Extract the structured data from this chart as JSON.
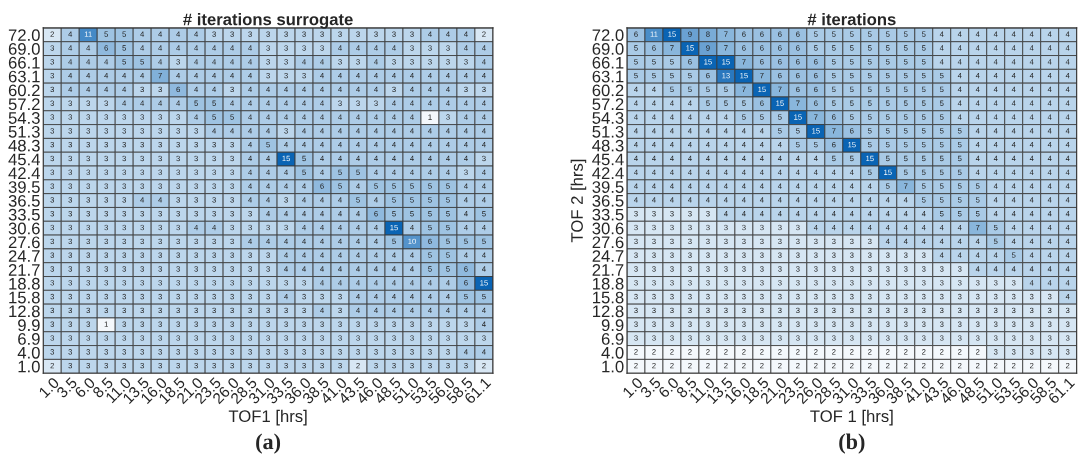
{
  "chart_data": [
    {
      "type": "heatmap",
      "title": "# iterations surrogate",
      "xlabel": "TOF1 [hrs]",
      "annotations": [
        "(a)"
      ],
      "data_labels": true,
      "categories": [
        "1.0",
        "3.5",
        "6.0",
        "8.5",
        "11.0",
        "13.5",
        "16.0",
        "18.5",
        "21.0",
        "23.5",
        "26.0",
        "28.5",
        "31.0",
        "33.5",
        "36.0",
        "38.5",
        "41.0",
        "43.5",
        "46.0",
        "48.5",
        "51.0",
        "53.5",
        "56.0",
        "58.5",
        "61.1"
      ],
      "y_categories": [
        "72.0",
        "69.0",
        "66.1",
        "63.1",
        "60.2",
        "57.2",
        "54.3",
        "51.3",
        "48.3",
        "45.4",
        "42.4",
        "39.5",
        "36.5",
        "33.5",
        "30.6",
        "27.6",
        "24.7",
        "21.7",
        "18.8",
        "15.8",
        "12.8",
        "9.9",
        "6.9",
        "4.0",
        "1.0"
      ],
      "cells": [
        [
          2,
          4,
          11,
          5,
          5,
          4,
          4,
          4,
          4,
          3,
          3,
          3,
          3,
          3,
          3,
          3,
          3,
          3,
          3,
          3,
          3,
          4,
          4,
          4,
          2
        ],
        [
          3,
          4,
          4,
          6,
          5,
          4,
          4,
          4,
          4,
          4,
          4,
          4,
          3,
          3,
          3,
          3,
          4,
          4,
          4,
          4,
          3,
          3,
          3,
          4,
          4
        ],
        [
          3,
          4,
          4,
          4,
          5,
          5,
          4,
          3,
          4,
          4,
          4,
          4,
          3,
          3,
          4,
          4,
          3,
          3,
          4,
          3,
          3,
          3,
          3,
          3,
          4
        ],
        [
          3,
          4,
          4,
          4,
          4,
          4,
          7,
          4,
          4,
          4,
          4,
          4,
          3,
          3,
          3,
          4,
          4,
          4,
          4,
          4,
          4,
          4,
          4,
          4,
          4
        ],
        [
          3,
          4,
          4,
          4,
          4,
          3,
          3,
          6,
          4,
          4,
          3,
          4,
          4,
          4,
          4,
          4,
          4,
          4,
          4,
          3,
          4,
          4,
          4,
          3,
          3
        ],
        [
          3,
          3,
          3,
          3,
          4,
          4,
          4,
          4,
          5,
          5,
          4,
          4,
          4,
          4,
          4,
          4,
          3,
          3,
          3,
          4,
          4,
          4,
          4,
          4,
          4
        ],
        [
          3,
          3,
          3,
          3,
          3,
          3,
          3,
          3,
          4,
          5,
          5,
          4,
          4,
          4,
          4,
          4,
          4,
          4,
          4,
          4,
          4,
          1,
          3,
          4,
          4
        ],
        [
          3,
          3,
          3,
          3,
          3,
          3,
          3,
          3,
          3,
          4,
          4,
          4,
          4,
          3,
          4,
          4,
          4,
          4,
          4,
          4,
          4,
          4,
          4,
          4,
          4
        ],
        [
          3,
          3,
          3,
          3,
          3,
          3,
          3,
          3,
          3,
          3,
          3,
          4,
          5,
          4,
          4,
          4,
          4,
          4,
          4,
          4,
          4,
          4,
          4,
          4,
          4
        ],
        [
          3,
          3,
          3,
          3,
          3,
          3,
          3,
          3,
          3,
          3,
          3,
          4,
          4,
          15,
          5,
          4,
          4,
          4,
          4,
          4,
          4,
          4,
          4,
          4,
          3
        ],
        [
          3,
          3,
          3,
          3,
          3,
          3,
          3,
          3,
          3,
          3,
          3,
          4,
          4,
          4,
          5,
          4,
          5,
          5,
          4,
          4,
          4,
          4,
          4,
          3,
          4
        ],
        [
          3,
          3,
          3,
          3,
          3,
          3,
          3,
          3,
          3,
          3,
          3,
          4,
          4,
          4,
          4,
          6,
          5,
          4,
          5,
          5,
          5,
          5,
          5,
          4,
          4
        ],
        [
          3,
          3,
          3,
          3,
          3,
          4,
          4,
          3,
          3,
          3,
          3,
          4,
          4,
          3,
          4,
          4,
          4,
          5,
          4,
          5,
          5,
          5,
          5,
          4,
          4
        ],
        [
          3,
          3,
          3,
          3,
          3,
          3,
          3,
          3,
          3,
          3,
          3,
          3,
          4,
          4,
          4,
          4,
          4,
          4,
          6,
          5,
          5,
          5,
          5,
          4,
          5
        ],
        [
          3,
          3,
          3,
          3,
          3,
          3,
          3,
          3,
          4,
          4,
          3,
          3,
          3,
          3,
          4,
          4,
          4,
          4,
          4,
          15,
          4,
          5,
          5,
          4,
          4
        ],
        [
          3,
          3,
          3,
          3,
          3,
          3,
          3,
          3,
          3,
          3,
          3,
          4,
          4,
          4,
          4,
          4,
          4,
          4,
          4,
          5,
          10,
          6,
          5,
          5,
          5
        ],
        [
          3,
          3,
          3,
          3,
          3,
          3,
          3,
          3,
          3,
          3,
          3,
          3,
          3,
          4,
          4,
          4,
          4,
          4,
          4,
          4,
          4,
          5,
          5,
          4,
          4
        ],
        [
          3,
          3,
          3,
          3,
          3,
          3,
          3,
          3,
          3,
          3,
          3,
          3,
          3,
          4,
          4,
          4,
          4,
          4,
          4,
          4,
          4,
          5,
          5,
          6,
          4
        ],
        [
          3,
          3,
          3,
          3,
          3,
          3,
          3,
          3,
          3,
          3,
          3,
          3,
          3,
          3,
          3,
          4,
          4,
          4,
          4,
          4,
          4,
          4,
          4,
          6,
          15
        ],
        [
          3,
          3,
          3,
          3,
          3,
          3,
          3,
          3,
          3,
          3,
          3,
          3,
          3,
          4,
          3,
          3,
          3,
          4,
          4,
          4,
          4,
          4,
          4,
          5,
          5
        ],
        [
          3,
          3,
          3,
          3,
          3,
          3,
          3,
          3,
          3,
          3,
          3,
          3,
          3,
          3,
          3,
          4,
          3,
          4,
          4,
          4,
          4,
          4,
          4,
          4,
          4
        ],
        [
          3,
          3,
          3,
          1,
          3,
          3,
          3,
          3,
          3,
          3,
          3,
          3,
          3,
          3,
          3,
          3,
          3,
          3,
          3,
          3,
          3,
          3,
          3,
          3,
          4
        ],
        [
          3,
          3,
          3,
          3,
          3,
          3,
          3,
          3,
          3,
          3,
          3,
          3,
          3,
          3,
          3,
          3,
          3,
          3,
          3,
          3,
          3,
          3,
          3,
          3,
          3
        ],
        [
          3,
          3,
          3,
          3,
          3,
          3,
          3,
          3,
          3,
          3,
          3,
          3,
          3,
          3,
          3,
          3,
          3,
          3,
          3,
          3,
          3,
          3,
          3,
          4,
          4
        ],
        [
          2,
          3,
          3,
          3,
          3,
          3,
          3,
          3,
          3,
          3,
          3,
          3,
          3,
          3,
          3,
          3,
          3,
          2,
          3,
          3,
          3,
          3,
          3,
          3,
          2
        ]
      ]
    },
    {
      "type": "heatmap",
      "title": "# iterations",
      "xlabel": "TOF 1 [hrs]",
      "ylabel": "TOF 2 [hrs]",
      "annotations": [
        "(b)"
      ],
      "data_labels": true,
      "categories": [
        "1.0",
        "3.5",
        "6.0",
        "8.5",
        "11.0",
        "13.5",
        "16.0",
        "18.5",
        "21.0",
        "23.5",
        "26.0",
        "28.5",
        "31.0",
        "33.5",
        "36.0",
        "38.5",
        "41.0",
        "43.5",
        "46.0",
        "48.5",
        "51.0",
        "53.5",
        "56.0",
        "58.5",
        "61.1"
      ],
      "y_categories": [
        "72.0",
        "69.0",
        "66.1",
        "63.1",
        "60.2",
        "57.2",
        "54.3",
        "51.3",
        "48.3",
        "45.4",
        "42.4",
        "39.5",
        "36.5",
        "33.5",
        "30.6",
        "27.6",
        "24.7",
        "21.7",
        "18.8",
        "15.8",
        "12.8",
        "9.9",
        "6.9",
        "4.0",
        "1.0"
      ],
      "cells": [
        [
          6,
          11,
          15,
          9,
          8,
          7,
          6,
          6,
          6,
          6,
          5,
          5,
          5,
          5,
          5,
          5,
          5,
          4,
          4,
          4,
          4,
          4,
          4,
          4,
          4
        ],
        [
          5,
          6,
          7,
          15,
          9,
          7,
          6,
          6,
          6,
          6,
          5,
          5,
          5,
          5,
          5,
          5,
          5,
          4,
          4,
          4,
          4,
          4,
          4,
          4,
          4
        ],
        [
          5,
          5,
          5,
          6,
          15,
          15,
          7,
          6,
          6,
          6,
          6,
          5,
          5,
          5,
          5,
          5,
          5,
          4,
          4,
          4,
          4,
          4,
          4,
          4,
          4
        ],
        [
          5,
          5,
          5,
          5,
          6,
          13,
          15,
          7,
          6,
          6,
          6,
          5,
          5,
          5,
          5,
          5,
          5,
          5,
          4,
          4,
          4,
          4,
          4,
          4,
          4
        ],
        [
          4,
          4,
          5,
          5,
          5,
          5,
          7,
          15,
          7,
          6,
          6,
          5,
          5,
          5,
          5,
          5,
          5,
          5,
          4,
          4,
          4,
          4,
          4,
          4,
          4
        ],
        [
          4,
          4,
          4,
          4,
          5,
          5,
          5,
          6,
          15,
          7,
          6,
          5,
          5,
          5,
          5,
          5,
          5,
          5,
          4,
          4,
          4,
          4,
          4,
          4,
          4
        ],
        [
          4,
          4,
          4,
          4,
          4,
          4,
          5,
          5,
          5,
          15,
          7,
          6,
          5,
          5,
          5,
          5,
          5,
          5,
          4,
          4,
          4,
          4,
          4,
          4,
          4
        ],
        [
          4,
          4,
          4,
          4,
          4,
          4,
          4,
          4,
          5,
          5,
          15,
          7,
          6,
          5,
          5,
          5,
          5,
          5,
          5,
          4,
          4,
          4,
          4,
          4,
          4
        ],
        [
          4,
          4,
          4,
          4,
          4,
          4,
          4,
          4,
          4,
          5,
          5,
          6,
          15,
          5,
          5,
          5,
          5,
          5,
          5,
          4,
          4,
          4,
          4,
          4,
          4
        ],
        [
          4,
          4,
          4,
          4,
          4,
          4,
          4,
          4,
          4,
          4,
          4,
          5,
          5,
          15,
          5,
          5,
          5,
          5,
          5,
          4,
          4,
          4,
          4,
          4,
          4
        ],
        [
          4,
          4,
          4,
          4,
          4,
          4,
          4,
          4,
          4,
          4,
          4,
          4,
          4,
          5,
          15,
          5,
          5,
          5,
          5,
          4,
          4,
          4,
          4,
          4,
          4
        ],
        [
          4,
          4,
          4,
          4,
          4,
          4,
          4,
          4,
          4,
          4,
          4,
          4,
          4,
          4,
          5,
          7,
          5,
          5,
          5,
          5,
          4,
          4,
          4,
          4,
          4
        ],
        [
          4,
          4,
          4,
          4,
          4,
          4,
          4,
          4,
          4,
          4,
          4,
          4,
          4,
          4,
          4,
          4,
          5,
          5,
          5,
          5,
          4,
          4,
          4,
          4,
          4
        ],
        [
          3,
          3,
          3,
          3,
          3,
          4,
          4,
          4,
          4,
          4,
          4,
          4,
          4,
          4,
          4,
          4,
          4,
          5,
          5,
          5,
          4,
          4,
          4,
          4,
          4
        ],
        [
          3,
          3,
          3,
          3,
          3,
          3,
          3,
          3,
          3,
          3,
          4,
          4,
          4,
          4,
          4,
          4,
          4,
          4,
          4,
          7,
          5,
          4,
          4,
          4,
          4
        ],
        [
          3,
          3,
          3,
          3,
          3,
          3,
          3,
          3,
          3,
          3,
          3,
          3,
          3,
          3,
          4,
          4,
          4,
          4,
          4,
          4,
          5,
          4,
          4,
          4,
          4
        ],
        [
          3,
          3,
          3,
          3,
          3,
          3,
          3,
          3,
          3,
          3,
          3,
          3,
          3,
          3,
          3,
          3,
          3,
          4,
          4,
          4,
          4,
          5,
          4,
          4,
          4
        ],
        [
          3,
          3,
          3,
          3,
          3,
          3,
          3,
          3,
          3,
          3,
          3,
          3,
          3,
          3,
          3,
          3,
          3,
          3,
          3,
          4,
          4,
          4,
          4,
          4,
          4
        ],
        [
          3,
          3,
          3,
          3,
          3,
          3,
          3,
          3,
          3,
          3,
          3,
          3,
          3,
          3,
          3,
          3,
          3,
          3,
          3,
          3,
          3,
          3,
          4,
          4,
          4
        ],
        [
          3,
          3,
          3,
          3,
          3,
          3,
          3,
          3,
          3,
          3,
          3,
          3,
          3,
          3,
          3,
          3,
          3,
          3,
          3,
          3,
          3,
          3,
          3,
          3,
          4
        ],
        [
          3,
          3,
          3,
          3,
          3,
          3,
          3,
          3,
          3,
          3,
          3,
          3,
          3,
          3,
          3,
          3,
          3,
          3,
          3,
          3,
          3,
          3,
          3,
          3,
          3
        ],
        [
          3,
          3,
          3,
          3,
          3,
          3,
          3,
          3,
          3,
          3,
          3,
          3,
          3,
          3,
          3,
          3,
          3,
          3,
          3,
          3,
          3,
          3,
          3,
          3,
          3
        ],
        [
          3,
          3,
          3,
          3,
          3,
          3,
          3,
          3,
          3,
          3,
          3,
          3,
          3,
          3,
          3,
          3,
          3,
          3,
          3,
          3,
          3,
          3,
          3,
          3,
          3
        ],
        [
          2,
          2,
          2,
          2,
          2,
          2,
          2,
          2,
          2,
          2,
          2,
          2,
          2,
          2,
          2,
          2,
          2,
          2,
          2,
          2,
          3,
          3,
          3,
          3,
          3
        ],
        [
          2,
          2,
          2,
          2,
          2,
          2,
          2,
          2,
          2,
          2,
          2,
          2,
          2,
          2,
          2,
          2,
          2,
          2,
          2,
          2,
          2,
          2,
          2,
          2,
          2
        ]
      ]
    }
  ]
}
